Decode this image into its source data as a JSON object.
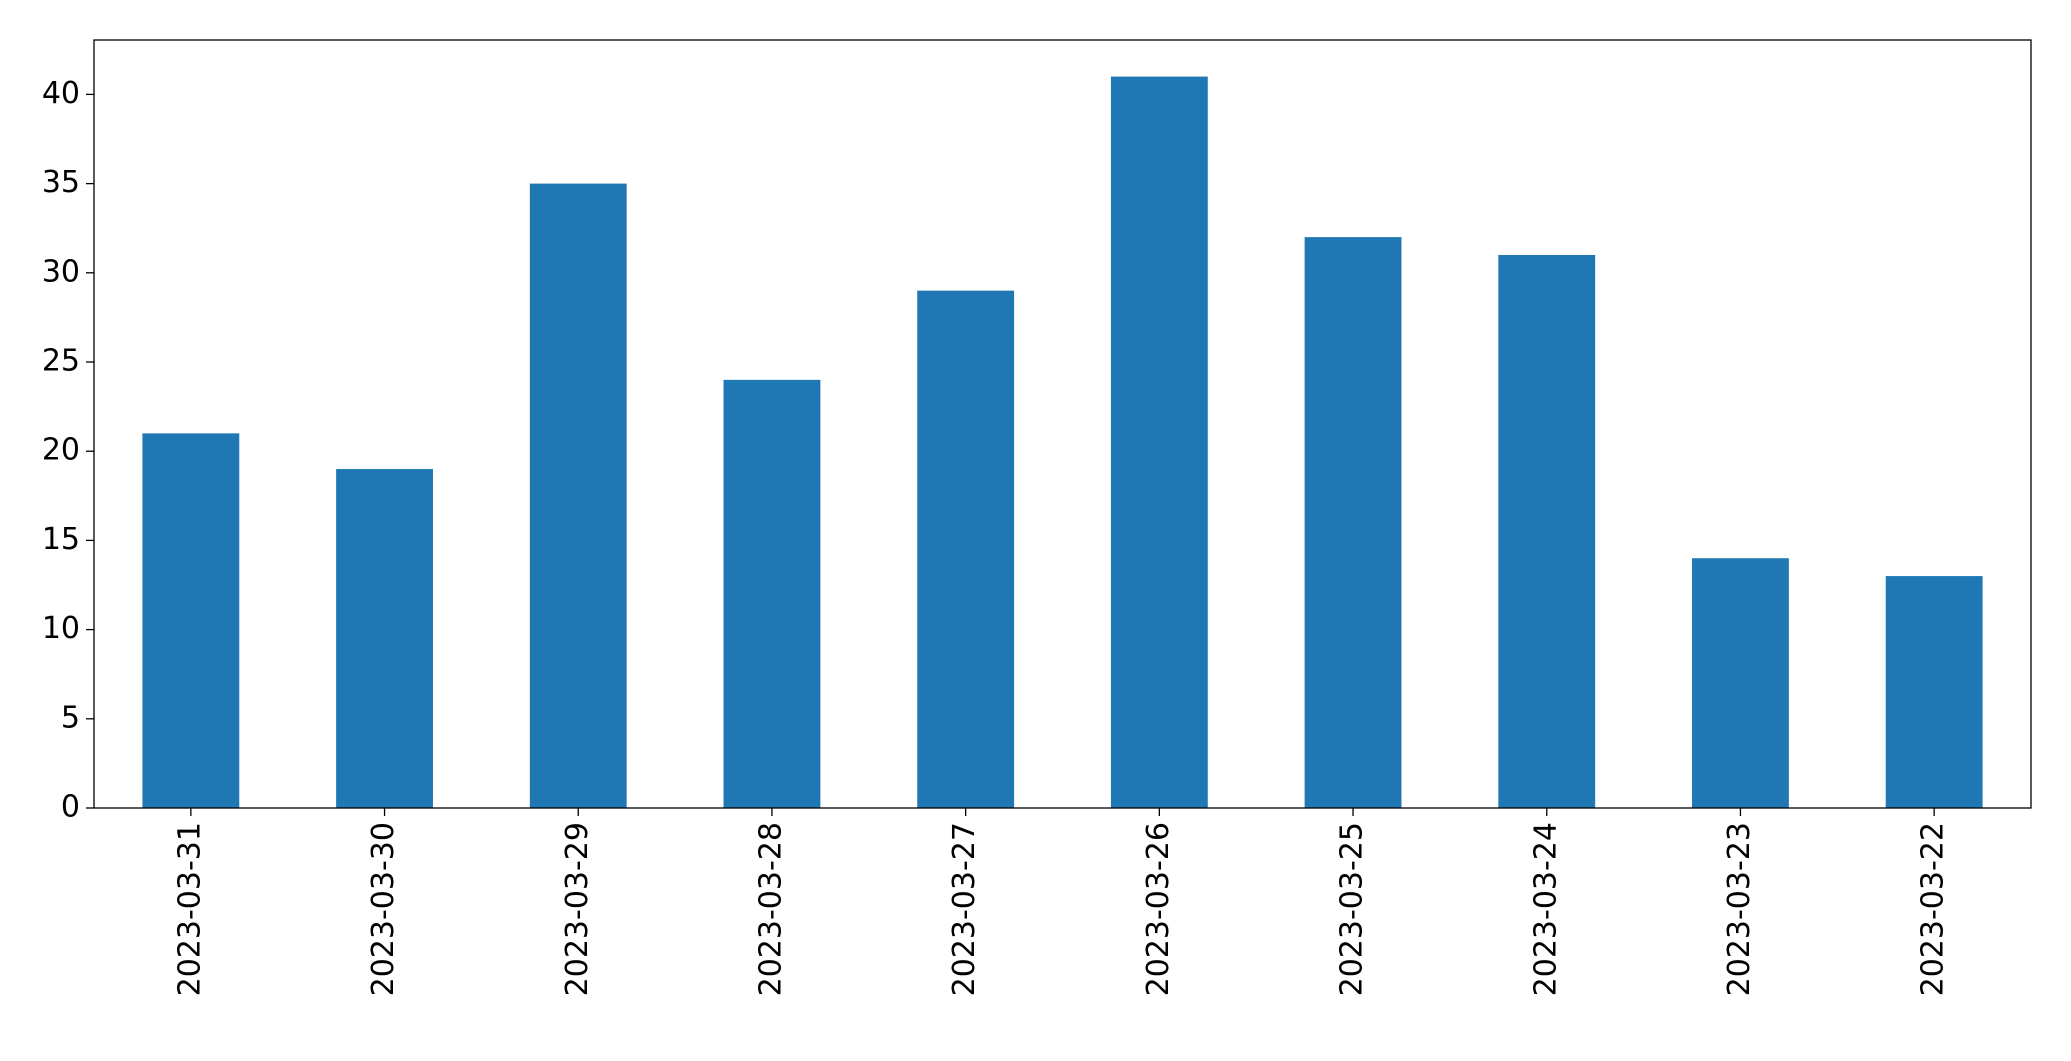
{
  "chart_data": {
    "type": "bar",
    "categories": [
      "2023-03-31",
      "2023-03-30",
      "2023-03-29",
      "2023-03-28",
      "2023-03-27",
      "2023-03-26",
      "2023-03-25",
      "2023-03-24",
      "2023-03-23",
      "2023-03-22"
    ],
    "values": [
      21,
      19,
      35,
      24,
      29,
      41,
      32,
      31,
      14,
      13
    ],
    "color": "#1f77b4",
    "ylim": [
      0,
      43.05
    ],
    "yticks": [
      0,
      5,
      10,
      15,
      20,
      25,
      30,
      35,
      40
    ],
    "grid": false
  }
}
